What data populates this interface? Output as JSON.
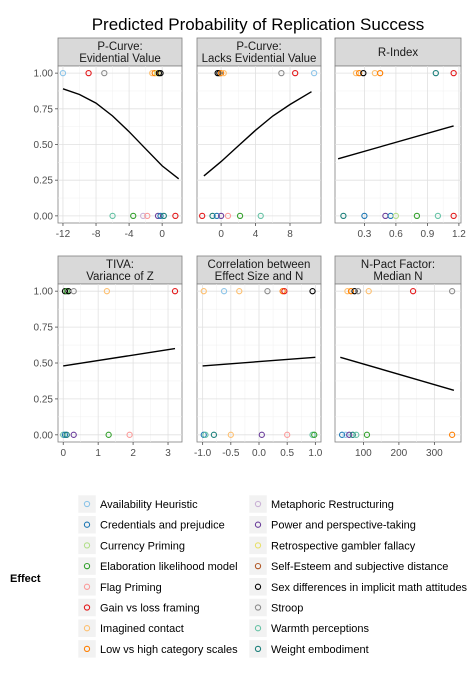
{
  "chart_data": {
    "type": "scatter",
    "title": "Predicted Probability of Replication Success",
    "legend": {
      "title": "Effect",
      "position": "bottom",
      "entries": [
        {
          "name": "Availability Heuristic",
          "color": "#8EC5E8"
        },
        {
          "name": "Credentials and prejudice",
          "color": "#1F78B4"
        },
        {
          "name": "Currency Priming",
          "color": "#B2DF8A"
        },
        {
          "name": "Elaboration likelihood model",
          "color": "#33A02C"
        },
        {
          "name": "Flag Priming",
          "color": "#FB9A99"
        },
        {
          "name": "Gain vs loss framing",
          "color": "#E31A1C"
        },
        {
          "name": "Imagined contact",
          "color": "#FDBF6F"
        },
        {
          "name": "Low vs high category scales",
          "color": "#FF7F00"
        },
        {
          "name": "Metaphoric Restructuring",
          "color": "#CAB2D6"
        },
        {
          "name": "Power and perspective-taking",
          "color": "#6A3D9A"
        },
        {
          "name": "Retrospective gambler fallacy",
          "color": "#E8E06A"
        },
        {
          "name": "Self-Esteem and subjective distance",
          "color": "#B15928"
        },
        {
          "name": "Sex differences in implicit math attitudes",
          "color": "#000000"
        },
        {
          "name": "Stroop",
          "color": "#8C8C8C"
        },
        {
          "name": "Warmth perceptions",
          "color": "#66C2A5"
        },
        {
          "name": "Weight embodiment",
          "color": "#1B7F7A"
        }
      ]
    },
    "grid": true,
    "panels": [
      {
        "strip": [
          "P-Curve:",
          "Evidential Value"
        ],
        "xlim": [
          -12.6,
          2.4
        ],
        "xticks": [
          -12,
          -8,
          -4,
          0
        ],
        "ylim": [
          -0.05,
          1.05
        ],
        "yticks": [
          0.0,
          0.25,
          0.5,
          0.75,
          1.0
        ],
        "curve": {
          "x": [
            -12,
            -10,
            -8,
            -6,
            -4,
            -2,
            0,
            2
          ],
          "y": [
            0.89,
            0.85,
            0.79,
            0.7,
            0.59,
            0.47,
            0.35,
            0.26
          ]
        },
        "points_top": [
          {
            "x": -12.0,
            "effect": "Availability Heuristic"
          },
          {
            "x": -8.9,
            "effect": "Gain vs loss framing"
          },
          {
            "x": -7.0,
            "effect": "Stroop"
          },
          {
            "x": -1.2,
            "effect": "Imagined contact"
          },
          {
            "x": -0.9,
            "effect": "Low vs high category scales"
          },
          {
            "x": -0.6,
            "effect": "Retrospective gambler fallacy"
          },
          {
            "x": -0.4,
            "effect": "Sex differences in implicit math attitudes"
          },
          {
            "x": -0.2,
            "effect": "Sex differences in implicit math attitudes"
          }
        ],
        "points_bottom": [
          {
            "x": -6.0,
            "effect": "Warmth perceptions"
          },
          {
            "x": -3.5,
            "effect": "Elaboration likelihood model"
          },
          {
            "x": -2.3,
            "effect": "Metaphoric Restructuring"
          },
          {
            "x": -1.8,
            "effect": "Flag Priming"
          },
          {
            "x": -0.5,
            "effect": "Power and perspective-taking"
          },
          {
            "x": -0.2,
            "effect": "Credentials and prejudice"
          },
          {
            "x": 0.2,
            "effect": "Weight embodiment"
          },
          {
            "x": 1.6,
            "effect": "Gain vs loss framing"
          }
        ]
      },
      {
        "strip": [
          "P-Curve:",
          "Lacks Evidential Value"
        ],
        "xlim": [
          -2.8,
          11.6
        ],
        "xticks": [
          0,
          4,
          8
        ],
        "ylim": [
          -0.05,
          1.05
        ],
        "yticks": [
          0.0,
          0.25,
          0.5,
          0.75,
          1.0
        ],
        "curve": {
          "x": [
            -2,
            0,
            2,
            4,
            6,
            8,
            10.5
          ],
          "y": [
            0.28,
            0.38,
            0.49,
            0.6,
            0.7,
            0.78,
            0.87
          ]
        },
        "points_top": [
          {
            "x": -0.4,
            "effect": "Sex differences in implicit math attitudes"
          },
          {
            "x": -0.2,
            "effect": "Sex differences in implicit math attitudes"
          },
          {
            "x": 0.0,
            "effect": "Low vs high category scales"
          },
          {
            "x": 0.3,
            "effect": "Imagined contact"
          },
          {
            "x": 7.0,
            "effect": "Stroop"
          },
          {
            "x": 8.6,
            "effect": "Gain vs loss framing"
          },
          {
            "x": 10.8,
            "effect": "Availability Heuristic"
          }
        ],
        "points_bottom": [
          {
            "x": -2.2,
            "effect": "Gain vs loss framing"
          },
          {
            "x": -1.0,
            "effect": "Weight embodiment"
          },
          {
            "x": -0.5,
            "effect": "Credentials and prejudice"
          },
          {
            "x": 0.0,
            "effect": "Power and perspective-taking"
          },
          {
            "x": 0.8,
            "effect": "Flag Priming"
          },
          {
            "x": 2.2,
            "effect": "Elaboration likelihood model"
          },
          {
            "x": 4.6,
            "effect": "Warmth perceptions"
          }
        ]
      },
      {
        "strip": [
          "R-Index"
        ],
        "xlim": [
          0.02,
          1.22
        ],
        "xticks": [
          0.3,
          0.6,
          0.9,
          1.2
        ],
        "xtick_labels": [
          "0.3",
          "0.6",
          "0.9",
          "1.2"
        ],
        "ylim": [
          -0.05,
          1.05
        ],
        "yticks": [
          0.0,
          0.25,
          0.5,
          0.75,
          1.0
        ],
        "curve": {
          "x": [
            0.05,
            1.15
          ],
          "y": [
            0.4,
            0.63
          ]
        },
        "points_top": [
          {
            "x": 0.22,
            "effect": "Imagined contact"
          },
          {
            "x": 0.25,
            "effect": "Low vs high category scales"
          },
          {
            "x": 0.29,
            "effect": "Sex differences in implicit math attitudes"
          },
          {
            "x": 0.4,
            "effect": "Imagined contact"
          },
          {
            "x": 0.45,
            "effect": "Low vs high category scales"
          },
          {
            "x": 0.98,
            "effect": "Weight embodiment"
          },
          {
            "x": 1.15,
            "effect": "Gain vs loss framing"
          }
        ],
        "points_bottom": [
          {
            "x": 0.1,
            "effect": "Weight embodiment"
          },
          {
            "x": 0.3,
            "effect": "Credentials and prejudice"
          },
          {
            "x": 0.5,
            "effect": "Power and perspective-taking"
          },
          {
            "x": 0.55,
            "effect": "Credentials and prejudice"
          },
          {
            "x": 0.6,
            "effect": "Currency Priming"
          },
          {
            "x": 0.8,
            "effect": "Elaboration likelihood model"
          },
          {
            "x": 1.0,
            "effect": "Warmth perceptions"
          },
          {
            "x": 1.15,
            "effect": "Gain vs loss framing"
          }
        ]
      },
      {
        "strip": [
          "TIVA:",
          "Variance of Z"
        ],
        "xlim": [
          -0.15,
          3.4
        ],
        "xticks": [
          0,
          1,
          2,
          3
        ],
        "ylim": [
          -0.05,
          1.05
        ],
        "yticks": [
          0.0,
          0.25,
          0.5,
          0.75,
          1.0
        ],
        "curve": {
          "x": [
            0,
            3.2
          ],
          "y": [
            0.48,
            0.6
          ]
        },
        "points_top": [
          {
            "x": 0.05,
            "effect": "Sex differences in implicit math attitudes"
          },
          {
            "x": 0.1,
            "effect": "Elaboration likelihood model"
          },
          {
            "x": 0.15,
            "effect": "Sex differences in implicit math attitudes"
          },
          {
            "x": 0.3,
            "effect": "Stroop"
          },
          {
            "x": 1.25,
            "effect": "Imagined contact"
          },
          {
            "x": 3.2,
            "effect": "Gain vs loss framing"
          }
        ],
        "points_bottom": [
          {
            "x": 0.0,
            "effect": "Warmth perceptions"
          },
          {
            "x": 0.05,
            "effect": "Credentials and prejudice"
          },
          {
            "x": 0.1,
            "effect": "Weight embodiment"
          },
          {
            "x": 0.3,
            "effect": "Power and perspective-taking"
          },
          {
            "x": 1.3,
            "effect": "Elaboration likelihood model"
          },
          {
            "x": 1.9,
            "effect": "Flag Priming"
          }
        ]
      },
      {
        "strip": [
          "Correlation between",
          "Effect Size and N"
        ],
        "xlim": [
          -1.1,
          1.1
        ],
        "xticks": [
          -1.0,
          -0.5,
          0.0,
          0.5,
          1.0
        ],
        "xtick_labels": [
          "-1.0",
          "-0.5",
          "0.0",
          "0.5",
          "1.0"
        ],
        "ylim": [
          -0.05,
          1.05
        ],
        "yticks": [
          0.0,
          0.25,
          0.5,
          0.75,
          1.0
        ],
        "curve": {
          "x": [
            -1.0,
            1.0
          ],
          "y": [
            0.48,
            0.54
          ]
        },
        "points_top": [
          {
            "x": -0.98,
            "effect": "Imagined contact"
          },
          {
            "x": -0.62,
            "effect": "Availability Heuristic"
          },
          {
            "x": -0.35,
            "effect": "Imagined contact"
          },
          {
            "x": 0.15,
            "effect": "Stroop"
          },
          {
            "x": 0.42,
            "effect": "Low vs high category scales"
          },
          {
            "x": 0.45,
            "effect": "Gain vs loss framing"
          },
          {
            "x": 0.95,
            "effect": "Sex differences in implicit math attitudes"
          }
        ],
        "points_bottom": [
          {
            "x": -0.98,
            "effect": "Credentials and prejudice"
          },
          {
            "x": -0.95,
            "effect": "Warmth perceptions"
          },
          {
            "x": -0.8,
            "effect": "Weight embodiment"
          },
          {
            "x": -0.5,
            "effect": "Imagined contact"
          },
          {
            "x": 0.05,
            "effect": "Power and perspective-taking"
          },
          {
            "x": 0.5,
            "effect": "Flag Priming"
          },
          {
            "x": 0.95,
            "effect": "Warmth perceptions"
          },
          {
            "x": 0.98,
            "effect": "Elaboration likelihood model"
          }
        ]
      },
      {
        "strip": [
          "N-Pact Factor:",
          "Median N"
        ],
        "xlim": [
          20,
          375
        ],
        "xticks": [
          100,
          200,
          300
        ],
        "ylim": [
          -0.05,
          1.05
        ],
        "yticks": [
          0.0,
          0.25,
          0.5,
          0.75,
          1.0
        ],
        "curve": {
          "x": [
            35,
            355
          ],
          "y": [
            0.54,
            0.31
          ]
        },
        "points_top": [
          {
            "x": 55,
            "effect": "Imagined contact"
          },
          {
            "x": 65,
            "effect": "Low vs high category scales"
          },
          {
            "x": 75,
            "effect": "Sex differences in implicit math attitudes"
          },
          {
            "x": 85,
            "effect": "Stroop"
          },
          {
            "x": 115,
            "effect": "Imagined contact"
          },
          {
            "x": 240,
            "effect": "Gain vs loss framing"
          },
          {
            "x": 350,
            "effect": "Stroop"
          }
        ],
        "points_bottom": [
          {
            "x": 40,
            "effect": "Credentials and prejudice"
          },
          {
            "x": 50,
            "effect": "Availability Heuristic"
          },
          {
            "x": 60,
            "effect": "Power and perspective-taking"
          },
          {
            "x": 70,
            "effect": "Weight embodiment"
          },
          {
            "x": 80,
            "effect": "Warmth perceptions"
          },
          {
            "x": 110,
            "effect": "Elaboration likelihood model"
          },
          {
            "x": 350,
            "effect": "Low vs high category scales"
          }
        ]
      }
    ]
  }
}
